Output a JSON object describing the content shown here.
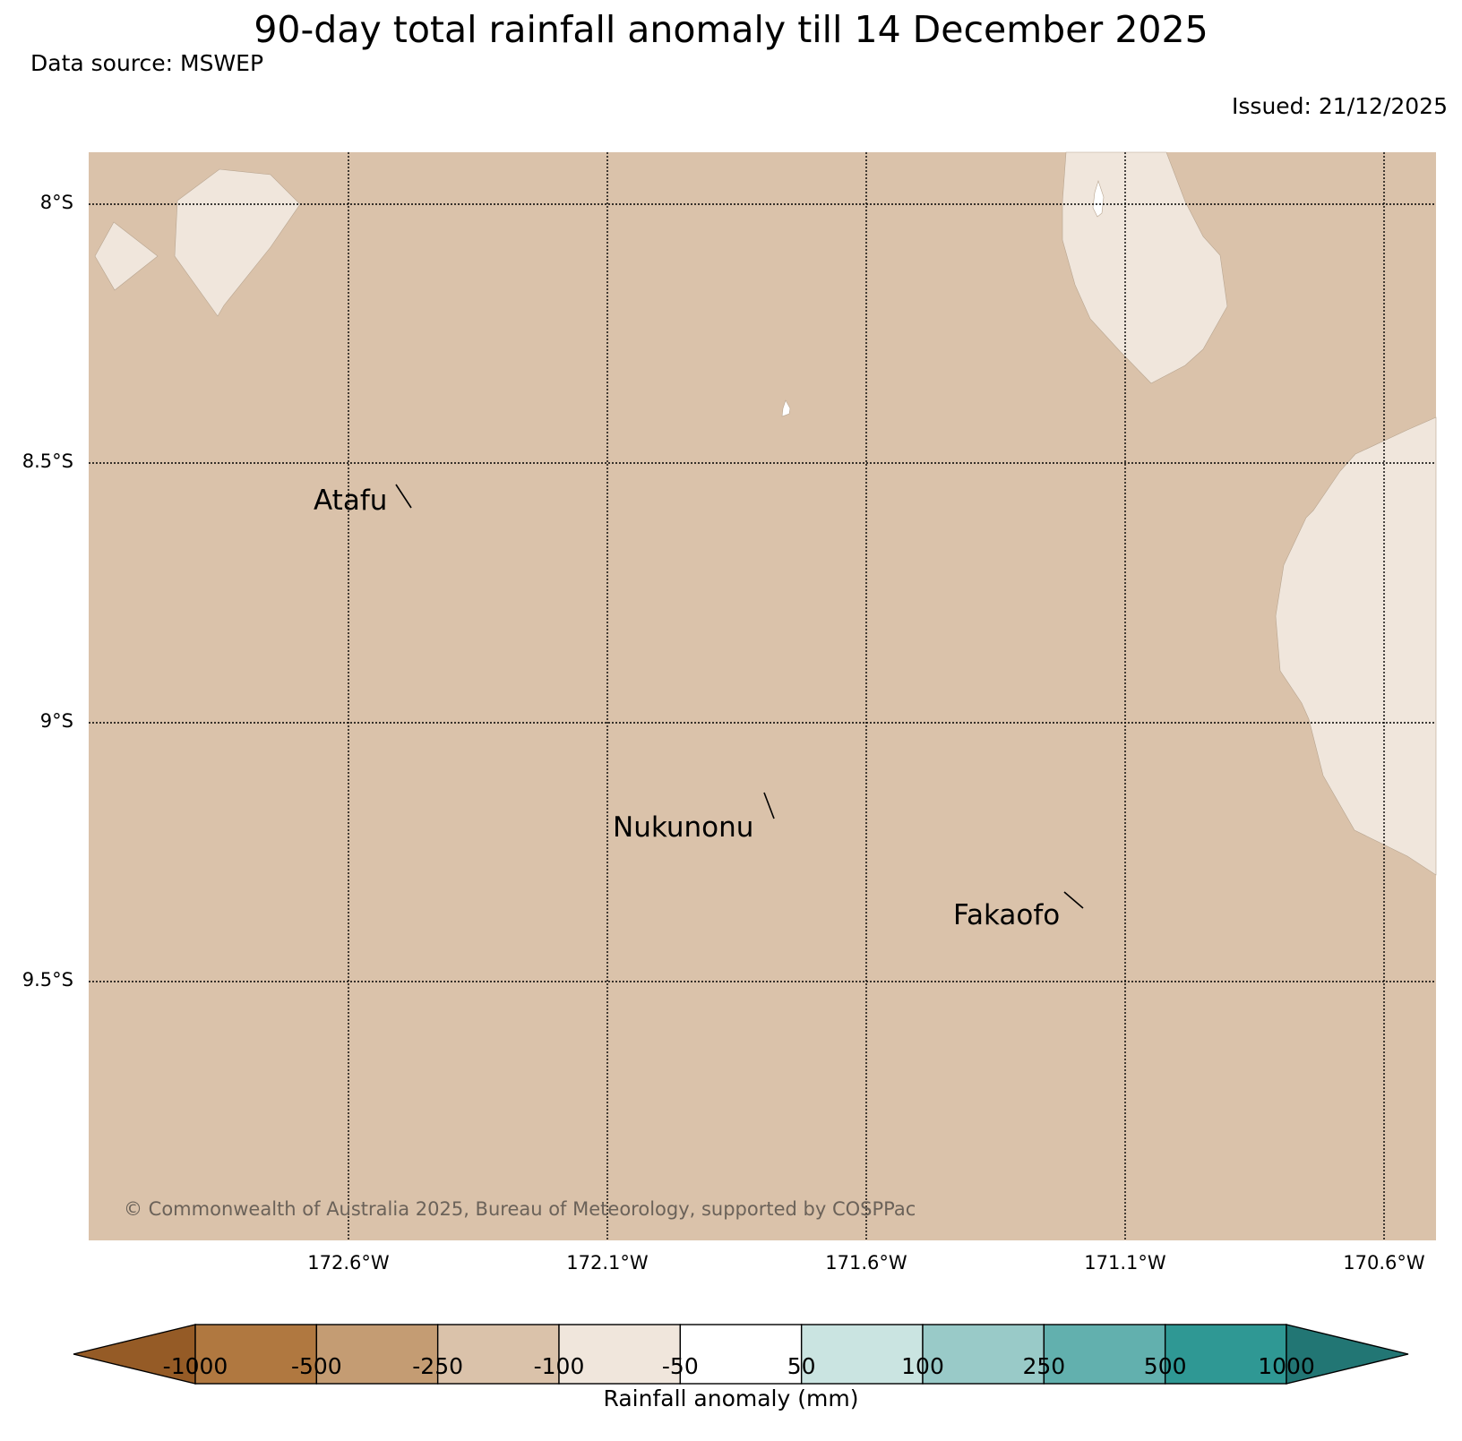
{
  "header": {
    "title": "90-day total rainfall anomaly till 14 December 2025",
    "data_source": "Data source: MSWEP",
    "issued": "Issued: 21/12/2025"
  },
  "map": {
    "background_anomaly_class": "-250 to -100",
    "region_colors": {
      "dry_-250_-100": "#dac2aa",
      "dry_-100_-50": "#f0e6dc"
    },
    "lat_labels": [
      "8°S",
      "8.5°S",
      "9°S",
      "9.5°S"
    ],
    "lon_labels": [
      "172.6°W",
      "172.1°W",
      "171.6°W",
      "171.1°W",
      "170.6°W"
    ],
    "places": [
      {
        "name": "Atafu"
      },
      {
        "name": "Nukunonu"
      },
      {
        "name": "Fakaofo"
      }
    ],
    "copyright": "© Commonwealth of Australia 2025, Bureau of Meteorology, supported by COSPPac"
  },
  "colorbar": {
    "title": "Rainfall anomaly (mm)",
    "ticks": [
      "-1000",
      "-500",
      "-250",
      "-100",
      "-50",
      "50",
      "100",
      "250",
      "500",
      "1000"
    ],
    "extend_low_color": "#955b26",
    "extend_high_color": "#227674",
    "colors": [
      "#b07840",
      "#c49c73",
      "#dac2aa",
      "#f0e6dc",
      "#ffffff",
      "#cae4e1",
      "#99cac8",
      "#62b0ae",
      "#2f9894"
    ]
  }
}
